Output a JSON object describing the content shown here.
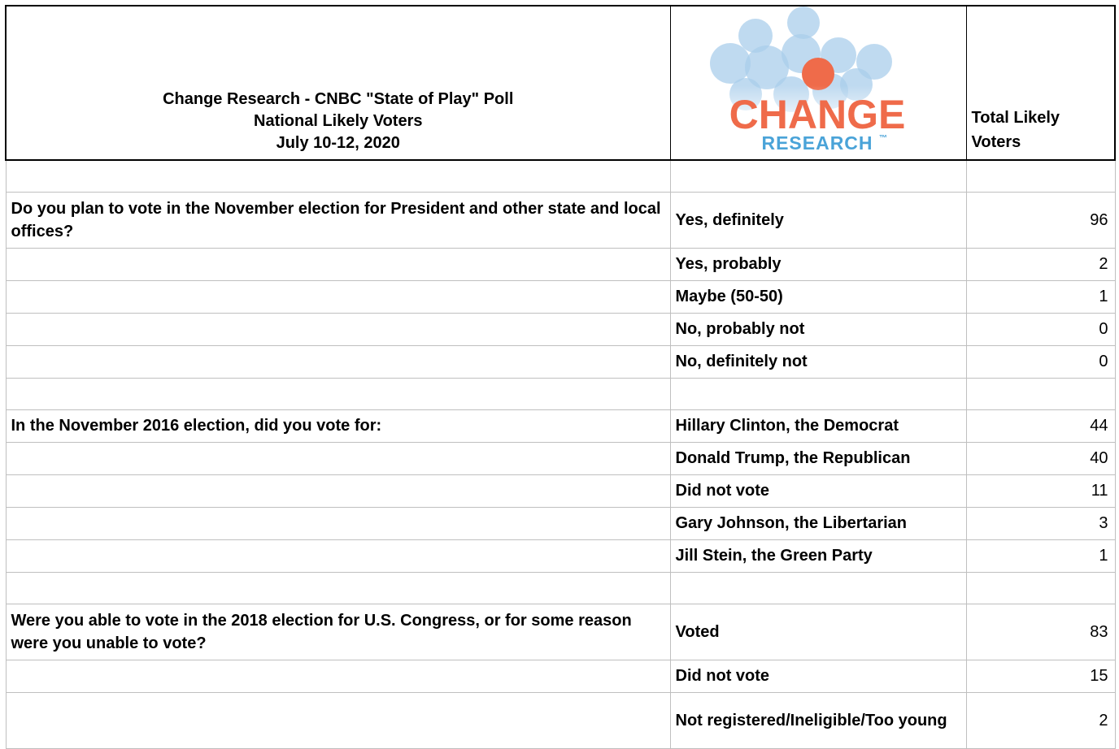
{
  "header": {
    "title_line1": "Change Research - CNBC \"State of Play\" Poll",
    "title_line2": "National Likely Voters",
    "title_line3": "July 10-12, 2020",
    "logo_text_top": "CHANGE",
    "logo_text_bottom": "RESEARCH",
    "logo_tm": "™",
    "column_header": "Total Likely Voters"
  },
  "colors": {
    "logo_orange": "#ef6b4a",
    "logo_blue": "#4aa3d8",
    "bubble_blue": "#a9cdeb"
  },
  "questions": [
    {
      "text": "Do you plan to vote in the November election for President and other state and local offices?",
      "answers": [
        {
          "label": "Yes, definitely",
          "value": "96"
        },
        {
          "label": "Yes, probably",
          "value": "2"
        },
        {
          "label": "Maybe (50-50)",
          "value": "1"
        },
        {
          "label": "No, probably not",
          "value": "0"
        },
        {
          "label": "No, definitely not",
          "value": "0"
        }
      ]
    },
    {
      "text": "In the November 2016 election, did you vote for:",
      "answers": [
        {
          "label": "Hillary Clinton, the Democrat",
          "value": "44"
        },
        {
          "label": "Donald Trump, the Republican",
          "value": "40"
        },
        {
          "label": "Did not vote",
          "value": "11"
        },
        {
          "label": "Gary Johnson, the Libertarian",
          "value": "3"
        },
        {
          "label": "Jill Stein, the Green Party",
          "value": "1"
        }
      ]
    },
    {
      "text": "Were you able to vote in the 2018 election for U.S. Congress, or for some reason were you unable to vote?",
      "answers": [
        {
          "label": "Voted",
          "value": "83"
        },
        {
          "label": "Did not vote",
          "value": "15"
        },
        {
          "label": "Not registered/Ineligible/Too young",
          "value": "2"
        }
      ]
    }
  ]
}
